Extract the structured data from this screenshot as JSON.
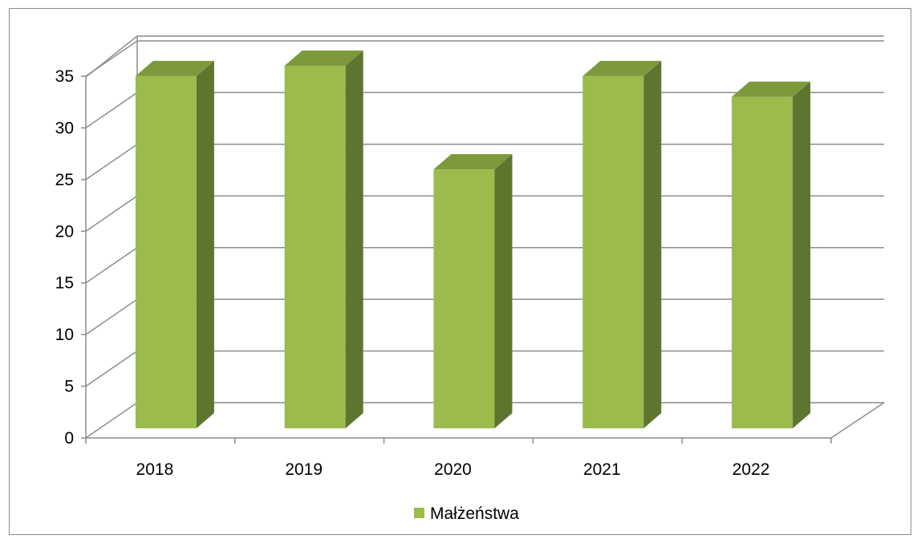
{
  "chart_data": {
    "type": "bar",
    "style": "3d-column",
    "categories": [
      "2018",
      "2019",
      "2020",
      "2021",
      "2022"
    ],
    "series": [
      {
        "name": "Małżeństwa",
        "values": [
          34,
          35,
          25,
          34,
          32
        ]
      }
    ],
    "ylim": [
      0,
      35
    ],
    "yticks": [
      "0",
      "5",
      "10",
      "15",
      "20",
      "25",
      "30",
      "35"
    ],
    "grid": true,
    "legend_position": "bottom",
    "colors": {
      "bar_front": "#9bbb4d",
      "bar_side": "#5e7530",
      "bar_top": "#7c9a3c",
      "grid": "#8c8c8c"
    }
  }
}
